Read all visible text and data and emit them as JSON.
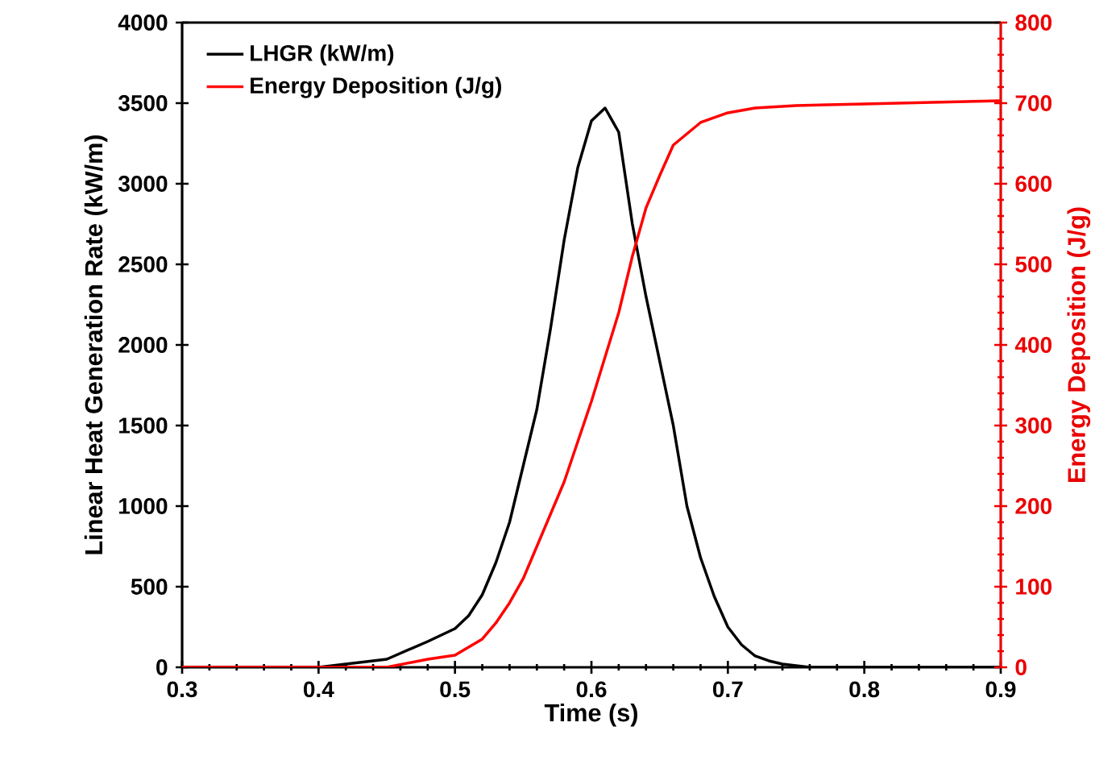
{
  "chart_data": {
    "type": "line",
    "xlabel": "Time (s)",
    "ylabel": "Linear Heat Generation Rate (kW/m)",
    "y2label": "Energy Deposition (J/g)",
    "xlim": [
      0.3,
      0.9
    ],
    "xticks": [
      0.3,
      0.4,
      0.5,
      0.6,
      0.7,
      0.8,
      0.9
    ],
    "ylim": [
      0,
      4000
    ],
    "yticks": [
      0,
      500,
      1000,
      1500,
      2000,
      2500,
      3000,
      3500,
      4000
    ],
    "y2lim": [
      0,
      800
    ],
    "y2ticks": [
      0,
      100,
      200,
      300,
      400,
      500,
      600,
      700,
      800
    ],
    "legend": "top left",
    "grid": false,
    "marker": "none",
    "line_style": "solid",
    "series": [
      {
        "name": "LHGR (kW/m)",
        "color": "#000000",
        "x": [
          0.3,
          0.35,
          0.4,
          0.42,
          0.45,
          0.48,
          0.5,
          0.51,
          0.52,
          0.53,
          0.54,
          0.55,
          0.56,
          0.57,
          0.58,
          0.59,
          0.6,
          0.61,
          0.62,
          0.63,
          0.64,
          0.65,
          0.66,
          0.67,
          0.68,
          0.69,
          0.7,
          0.71,
          0.72,
          0.73,
          0.74,
          0.76,
          0.8,
          0.9
        ],
        "values": [
          0,
          0,
          0,
          20,
          50,
          160,
          240,
          320,
          450,
          650,
          900,
          1250,
          1600,
          2100,
          2650,
          3100,
          3390,
          3470,
          3320,
          2750,
          2300,
          1900,
          1500,
          1000,
          680,
          440,
          250,
          140,
          70,
          40,
          20,
          0,
          0,
          0
        ]
      },
      {
        "name": "Energy Deposition (J/g)",
        "color": "#ff0000",
        "axis": "y2",
        "x": [
          0.3,
          0.4,
          0.45,
          0.48,
          0.5,
          0.52,
          0.53,
          0.54,
          0.55,
          0.56,
          0.57,
          0.58,
          0.59,
          0.6,
          0.61,
          0.62,
          0.63,
          0.64,
          0.65,
          0.66,
          0.68,
          0.7,
          0.72,
          0.75,
          0.8,
          0.9
        ],
        "values": [
          0,
          0,
          0,
          10,
          15,
          35,
          55,
          80,
          110,
          150,
          190,
          230,
          280,
          330,
          385,
          440,
          510,
          570,
          610,
          648,
          676,
          688,
          694,
          697,
          699,
          703
        ]
      }
    ]
  }
}
